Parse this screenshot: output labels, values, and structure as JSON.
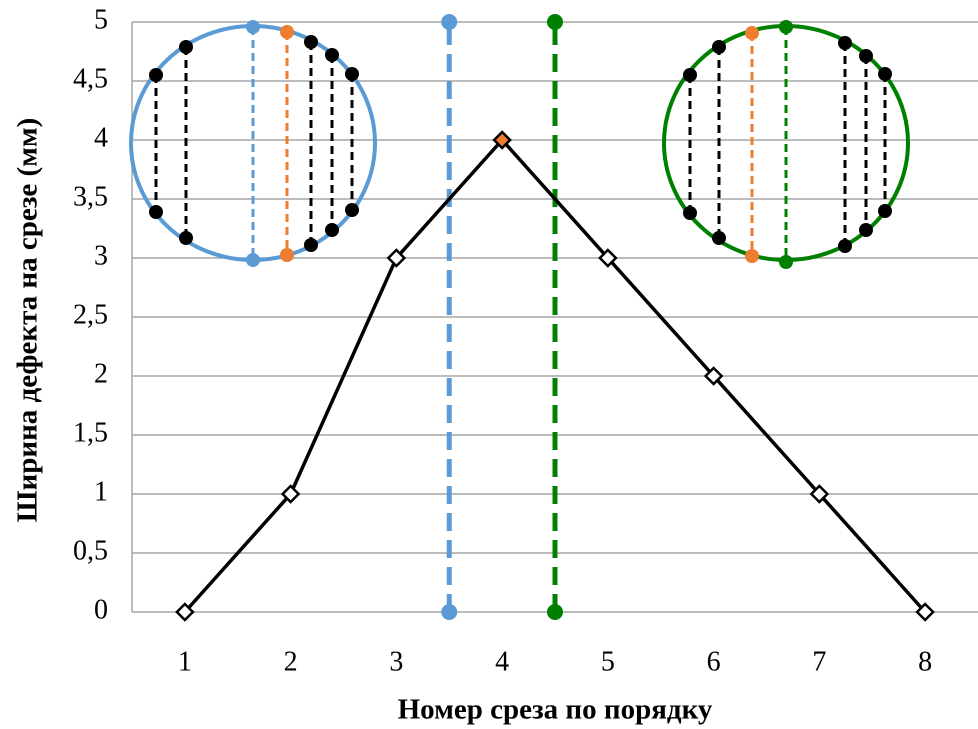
{
  "chart_data": {
    "type": "line",
    "x_label": "Номер среза по порядку",
    "y_label": "Ширина дефекта на срезе (мм)",
    "x": [
      1,
      2,
      3,
      4,
      5,
      6,
      7,
      8
    ],
    "xlim": [
      0.5,
      8.5
    ],
    "xticks": [
      1,
      2,
      3,
      4,
      5,
      6,
      7,
      8
    ],
    "ylim": [
      0,
      5
    ],
    "yticks": [
      0,
      {
        "value": 0.5,
        "label": "0,5"
      },
      1,
      {
        "value": 1.5,
        "label": "1,5"
      },
      2,
      {
        "value": 2.5,
        "label": "2,5"
      },
      3,
      {
        "value": 3.5,
        "label": "3,5"
      },
      4,
      {
        "value": 4.5,
        "label": "4,5"
      },
      5
    ],
    "grid": true,
    "series": [
      {
        "color": "#000000",
        "values": [
          0,
          1,
          3,
          4,
          3,
          2,
          1,
          0
        ],
        "marker_fills": [
          "#ffffff",
          "#ffffff",
          "#ffffff",
          "#ed7d31",
          "#ffffff",
          "#ffffff",
          "#ffffff",
          "#ffffff"
        ]
      }
    ],
    "vertical_lines": [
      {
        "x": 3.5,
        "color": "#5b9bd5"
      },
      {
        "x": 4.5,
        "color": "#008000"
      }
    ]
  }
}
